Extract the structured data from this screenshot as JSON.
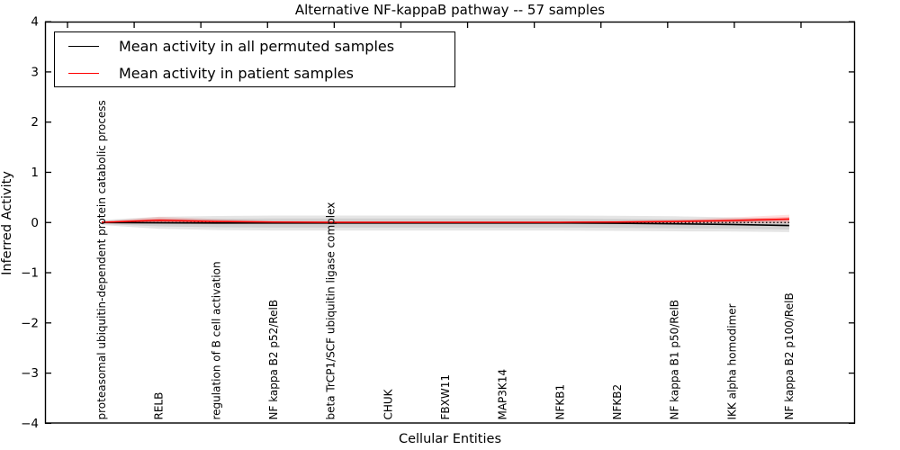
{
  "title": "Alternative NF-kappaB pathway -- 57 samples",
  "axes": {
    "xlabel": "Cellular Entities",
    "ylabel": "Inferred Activity"
  },
  "legend": {
    "entries": [
      {
        "label": "Mean activity in all permuted samples",
        "color": "#000000"
      },
      {
        "label": "Mean activity in patient samples",
        "color": "#ff0000"
      }
    ]
  },
  "chart_data": {
    "type": "line",
    "title": "Alternative NF-kappaB pathway -- 57 samples",
    "xlabel": "Cellular Entities",
    "ylabel": "Inferred Activity",
    "ylim": [
      -4,
      4
    ],
    "ytick_labels": [
      "4",
      "3",
      "2",
      "1",
      "0",
      "−1",
      "−2",
      "−3",
      "−4"
    ],
    "grid": false,
    "legend_position": "upper left",
    "categories": [
      "proteasomal ubiquitin-dependent protein catabolic process",
      "RELB",
      "regulation of B cell activation",
      "NF kappa B2 p52/RelB",
      "beta TrCP1/SCF ubiquitin ligase complex",
      "CHUK",
      "FBXW11",
      "MAP3K14",
      "NFKB1",
      "NFKB2",
      "NF kappa B1 p50/RelB",
      "IKK alpha homodimer",
      "NF kappa B2 p100/RelB"
    ],
    "series": [
      {
        "name": "Mean activity in all permuted samples",
        "color": "#000000",
        "style": "solid",
        "values": [
          0.0,
          -0.005,
          -0.01,
          -0.01,
          -0.01,
          -0.01,
          -0.01,
          -0.01,
          -0.01,
          -0.015,
          -0.025,
          -0.04,
          -0.06
        ]
      },
      {
        "name": "Mean activity in patient samples",
        "color": "#ff0000",
        "style": "solid",
        "values": [
          0.005,
          0.045,
          0.02,
          0.008,
          0.005,
          0.005,
          0.005,
          0.005,
          0.005,
          0.01,
          0.02,
          0.04,
          0.07
        ]
      },
      {
        "name": "zero-reference",
        "color": "#000000",
        "style": "dotted",
        "values": [
          0,
          0,
          0,
          0,
          0,
          0,
          0,
          0,
          0,
          0,
          0,
          0,
          0
        ]
      }
    ],
    "bands": [
      {
        "name": "permuted-samples-spread",
        "center_series": 0,
        "color": "#000000",
        "halfwidths": [
          0.05,
          0.12,
          0.14,
          0.15,
          0.15,
          0.15,
          0.15,
          0.15,
          0.15,
          0.15,
          0.15,
          0.14,
          0.13
        ]
      },
      {
        "name": "patient-samples-spread",
        "center_series": 1,
        "color": "#ff0000",
        "halfwidths": [
          0.02,
          0.07,
          0.05,
          0.025,
          0.02,
          0.02,
          0.02,
          0.02,
          0.02,
          0.025,
          0.04,
          0.06,
          0.085
        ]
      }
    ]
  }
}
